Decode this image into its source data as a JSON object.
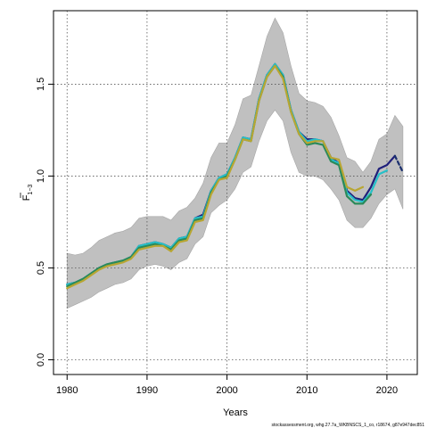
{
  "chart_data": {
    "type": "line",
    "xlabel": "Years",
    "ylabel": "F",
    "ylabel_subscript": "1−3",
    "xlim": [
      1978.3,
      2023.8
    ],
    "ylim": [
      -0.08,
      1.9
    ],
    "xticks": [
      1980,
      1990,
      2000,
      2010,
      2020
    ],
    "xtick_labels": [
      "1980",
      "1990",
      "2000",
      "2010",
      "2020"
    ],
    "yticks": [
      0.0,
      0.5,
      1.0,
      1.5
    ],
    "ytick_labels": [
      "0.0",
      "0.5",
      "1.0",
      "1.5"
    ],
    "grid": true,
    "footer": "stockassessment.org, whg.27.7a_WKBNSCS_1_co, r18674, g87e947dec851",
    "confidence_band": {
      "x": [
        1980,
        1981,
        1982,
        1983,
        1984,
        1985,
        1986,
        1987,
        1988,
        1989,
        1990,
        1991,
        1992,
        1993,
        1994,
        1995,
        1996,
        1997,
        1998,
        1999,
        2000,
        2001,
        2002,
        2003,
        2004,
        2005,
        2006,
        2007,
        2008,
        2009,
        2010,
        2011,
        2012,
        2013,
        2014,
        2015,
        2016,
        2017,
        2018,
        2019,
        2020,
        2021,
        2022
      ],
      "upper": [
        0.58,
        0.57,
        0.58,
        0.61,
        0.65,
        0.67,
        0.69,
        0.7,
        0.72,
        0.77,
        0.78,
        0.78,
        0.78,
        0.76,
        0.81,
        0.83,
        0.88,
        0.96,
        1.1,
        1.18,
        1.18,
        1.28,
        1.42,
        1.44,
        1.6,
        1.76,
        1.86,
        1.78,
        1.6,
        1.45,
        1.41,
        1.4,
        1.38,
        1.32,
        1.22,
        1.1,
        1.08,
        1.02,
        1.08,
        1.2,
        1.23,
        1.33,
        1.27
      ],
      "lower": [
        0.28,
        0.3,
        0.32,
        0.34,
        0.37,
        0.39,
        0.41,
        0.42,
        0.44,
        0.49,
        0.51,
        0.52,
        0.51,
        0.49,
        0.53,
        0.55,
        0.63,
        0.67,
        0.8,
        0.84,
        0.87,
        0.93,
        1.02,
        1.05,
        1.19,
        1.3,
        1.36,
        1.3,
        1.13,
        1.02,
        1.0,
        1.0,
        0.98,
        0.93,
        0.87,
        0.76,
        0.72,
        0.72,
        0.77,
        0.85,
        0.9,
        0.93,
        0.82
      ]
    },
    "series": [
      {
        "color": "#1f1f7a",
        "style": "solid",
        "x": [
          1980,
          1981,
          1982,
          1983,
          1984,
          1985,
          1986,
          1987,
          1988,
          1989,
          1990,
          1991,
          1992,
          1993,
          1994,
          1995,
          1996,
          1997,
          1998,
          1999,
          2000,
          2001,
          2002,
          2003,
          2004,
          2005,
          2006,
          2007,
          2008,
          2009,
          2010,
          2011,
          2012,
          2013,
          2014,
          2015,
          2016,
          2017,
          2018,
          2019,
          2020,
          2021
        ],
        "values": [
          0.41,
          0.42,
          0.44,
          0.47,
          0.5,
          0.52,
          0.53,
          0.54,
          0.56,
          0.62,
          0.63,
          0.64,
          0.63,
          0.61,
          0.66,
          0.67,
          0.77,
          0.79,
          0.92,
          0.99,
          1.01,
          1.1,
          1.21,
          1.2,
          1.42,
          1.55,
          1.61,
          1.55,
          1.36,
          1.24,
          1.2,
          1.2,
          1.19,
          1.1,
          1.07,
          0.92,
          0.88,
          0.87,
          0.94,
          1.04,
          1.06,
          1.11
        ]
      },
      {
        "color": "#1a2f6e",
        "style": "dashed",
        "x": [
          2021,
          2022
        ],
        "values": [
          1.11,
          1.02
        ]
      },
      {
        "color": "#26c0c8",
        "style": "solid",
        "x": [
          1980,
          1981,
          1982,
          1983,
          1984,
          1985,
          1986,
          1987,
          1988,
          1989,
          1990,
          1991,
          1992,
          1993,
          1994,
          1995,
          1996,
          1997,
          1998,
          1999,
          2000,
          2001,
          2002,
          2003,
          2004,
          2005,
          2006,
          2007,
          2008,
          2009,
          2010,
          2011,
          2012,
          2013,
          2014,
          2015,
          2016,
          2017,
          2018,
          2019,
          2020
        ],
        "values": [
          0.41,
          0.42,
          0.44,
          0.47,
          0.5,
          0.52,
          0.53,
          0.54,
          0.56,
          0.62,
          0.63,
          0.64,
          0.63,
          0.61,
          0.66,
          0.67,
          0.77,
          0.78,
          0.92,
          0.99,
          1.01,
          1.1,
          1.21,
          1.2,
          1.42,
          1.55,
          1.61,
          1.55,
          1.36,
          1.24,
          1.19,
          1.2,
          1.19,
          1.09,
          1.07,
          0.91,
          0.87,
          0.86,
          0.91,
          1.01,
          1.03
        ]
      },
      {
        "color": "#2a8a5a",
        "style": "solid",
        "x": [
          1980,
          1981,
          1982,
          1983,
          1984,
          1985,
          1986,
          1987,
          1988,
          1989,
          1990,
          1991,
          1992,
          1993,
          1994,
          1995,
          1996,
          1997,
          1998,
          1999,
          2000,
          2001,
          2002,
          2003,
          2004,
          2005,
          2006,
          2007,
          2008,
          2009,
          2010,
          2011,
          2012,
          2013,
          2014,
          2015,
          2016,
          2017,
          2018
        ],
        "values": [
          0.4,
          0.42,
          0.44,
          0.47,
          0.5,
          0.52,
          0.53,
          0.54,
          0.56,
          0.61,
          0.62,
          0.63,
          0.62,
          0.6,
          0.65,
          0.66,
          0.76,
          0.77,
          0.91,
          0.98,
          1.0,
          1.09,
          1.2,
          1.19,
          1.41,
          1.54,
          1.6,
          1.54,
          1.35,
          1.23,
          1.17,
          1.18,
          1.17,
          1.08,
          1.06,
          0.89,
          0.85,
          0.85,
          0.9
        ]
      },
      {
        "color": "#b8a632",
        "style": "solid",
        "x": [
          1980,
          1981,
          1982,
          1983,
          1984,
          1985,
          1986,
          1987,
          1988,
          1989,
          1990,
          1991,
          1992,
          1993,
          1994,
          1995,
          1996,
          1997,
          1998,
          1999,
          2000,
          2001,
          2002,
          2003,
          2004,
          2005,
          2006,
          2007,
          2008,
          2009,
          2010,
          2011,
          2012,
          2013,
          2014,
          2015,
          2016,
          2017
        ],
        "values": [
          0.39,
          0.41,
          0.43,
          0.46,
          0.49,
          0.51,
          0.52,
          0.53,
          0.55,
          0.6,
          0.61,
          0.62,
          0.62,
          0.59,
          0.64,
          0.65,
          0.75,
          0.76,
          0.9,
          0.98,
          0.99,
          1.09,
          1.2,
          1.19,
          1.41,
          1.54,
          1.6,
          1.53,
          1.35,
          1.23,
          1.18,
          1.19,
          1.19,
          1.1,
          1.09,
          0.94,
          0.92,
          0.94
        ]
      }
    ]
  }
}
